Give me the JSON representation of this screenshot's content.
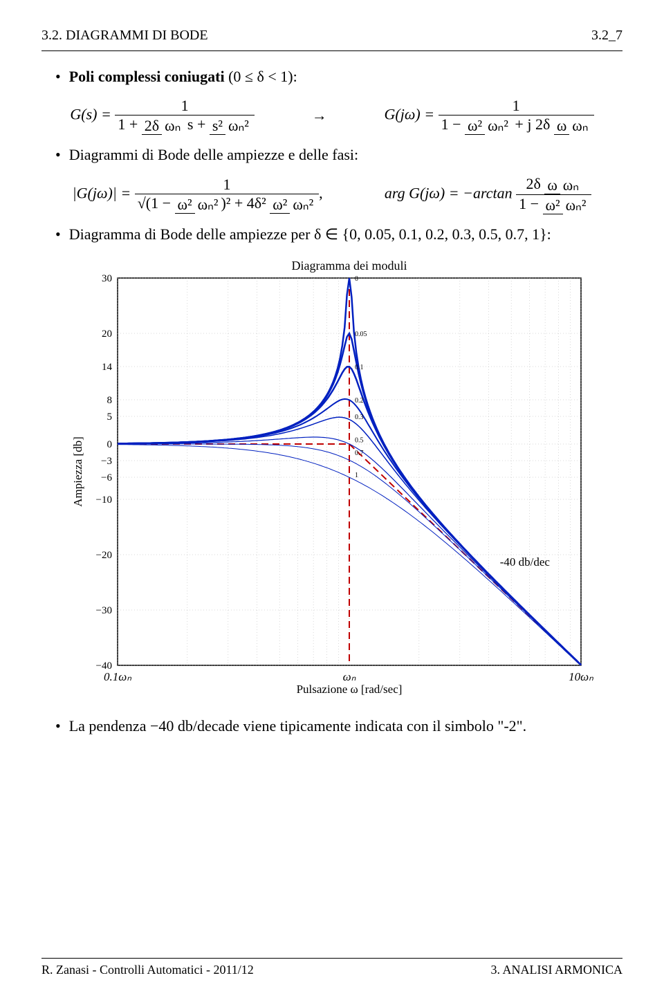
{
  "header": {
    "left": "3.2. DIAGRAMMI DI BODE",
    "right": "3.2_7"
  },
  "bullets": {
    "b1_prefix": "Poli complessi coniugati",
    "b1_cond": "(0 ≤ δ < 1):",
    "b2": "Diagrammi di Bode delle ampiezze e delle fasi:",
    "b3_prefix": "Diagramma di Bode delle ampiezze per",
    "b3_set": "δ ∈ {0, 0.05, 0.1, 0.2, 0.3, 0.5, 0.7, 1}:",
    "b4_prefix": "La pendenza",
    "b4_val": "−40",
    "b4_suffix": "db/decade viene tipicamente indicata con il simbolo \"-2\"."
  },
  "math": {
    "gs_lhs": "G(s) =",
    "gjw_lhs": "G(jω) =",
    "arrow": "→",
    "mag_lhs": "|G(jω)| =",
    "arg_lhs": "arg G(jω) = −arctan"
  },
  "chart": {
    "title": "Diagramma dei moduli",
    "ylabel": "Ampiezza [db]",
    "xlabel": "Pulsazione ω [rad/sec]",
    "slope_annot": "-40 db/dec",
    "xtick_labels": [
      "0.1ωₙ",
      "ωₙ",
      "10ωₙ"
    ],
    "ytick_values": [
      30,
      20,
      14,
      8,
      5,
      0,
      -3,
      -6,
      -10,
      -20,
      -30,
      -40
    ],
    "delta_labels": [
      "0",
      "0.05",
      "0.1",
      "0.2",
      "0.3",
      "0.5",
      "0.7",
      "1"
    ],
    "ylim": [
      -40,
      30
    ],
    "xlim_log": [
      -1,
      1
    ],
    "background_color": "#ffffff",
    "grid_color": "#b0b0b0",
    "curve_color": "#0020c0",
    "asymptote_color": "#c00000",
    "vline_color": "#c00000",
    "series": {
      "deltas": [
        0,
        0.05,
        0.1,
        0.2,
        0.3,
        0.5,
        0.7,
        1.0
      ],
      "line_widths": [
        2.5,
        2.5,
        2.5,
        2.0,
        1.5,
        1.2,
        1.0,
        1.0
      ]
    }
  },
  "footer": {
    "left": "R. Zanasi - Controlli Automatici - 2011/12",
    "right": "3. ANALISI ARMONICA"
  }
}
